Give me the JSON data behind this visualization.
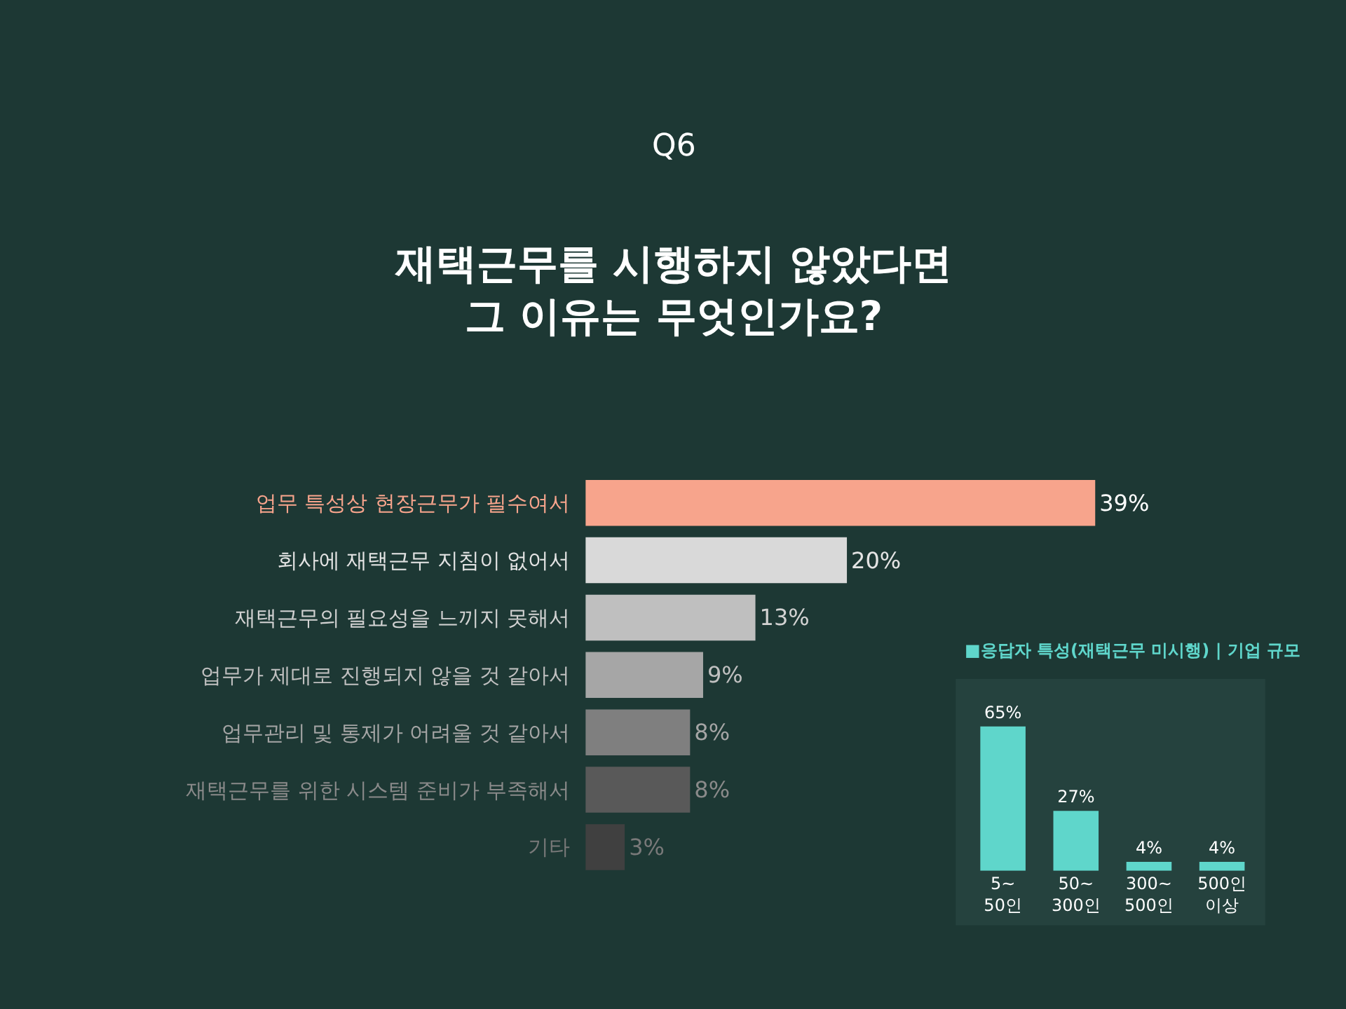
{
  "chart_data": [
    {
      "type": "bar",
      "orientation": "horizontal",
      "subtitle": "Q6",
      "title": "재택근무를 시행하지 않았다면\n그 이유는 무엇인가요?",
      "categories": [
        "업무 특성상 현장근무가 필수여서",
        "회사에 재택근무 지침이 없어서",
        "재택근무의 필요성을 느끼지 못해서",
        "업무가 제대로 진행되지 않을 것 같아서",
        "업무관리 및 통제가 어려울 것 같아서",
        "재택근무를 위한 시스템 준비가 부족해서",
        "기타"
      ],
      "values": [
        39,
        20,
        13,
        9,
        8,
        8,
        3
      ],
      "colors": [
        "#f7a48c",
        "#d9d9d9",
        "#bfbfbf",
        "#a6a6a6",
        "#7f7f7f",
        "#595959",
        "#404040"
      ],
      "value_labels": [
        "39%",
        "20%",
        "13%",
        "9%",
        "8%",
        "8%",
        "3%"
      ]
    },
    {
      "type": "bar",
      "title": "■응답자 특성(재택근무 미시행) | 기업 규모",
      "categories": [
        "5~\n50인",
        "50~\n300인",
        "300~\n500인",
        "500인\n이상"
      ],
      "values": [
        65,
        27,
        4,
        4
      ],
      "color": "#5fd6cb",
      "value_labels": [
        "65%",
        "27%",
        "4%",
        "4%"
      ]
    }
  ]
}
